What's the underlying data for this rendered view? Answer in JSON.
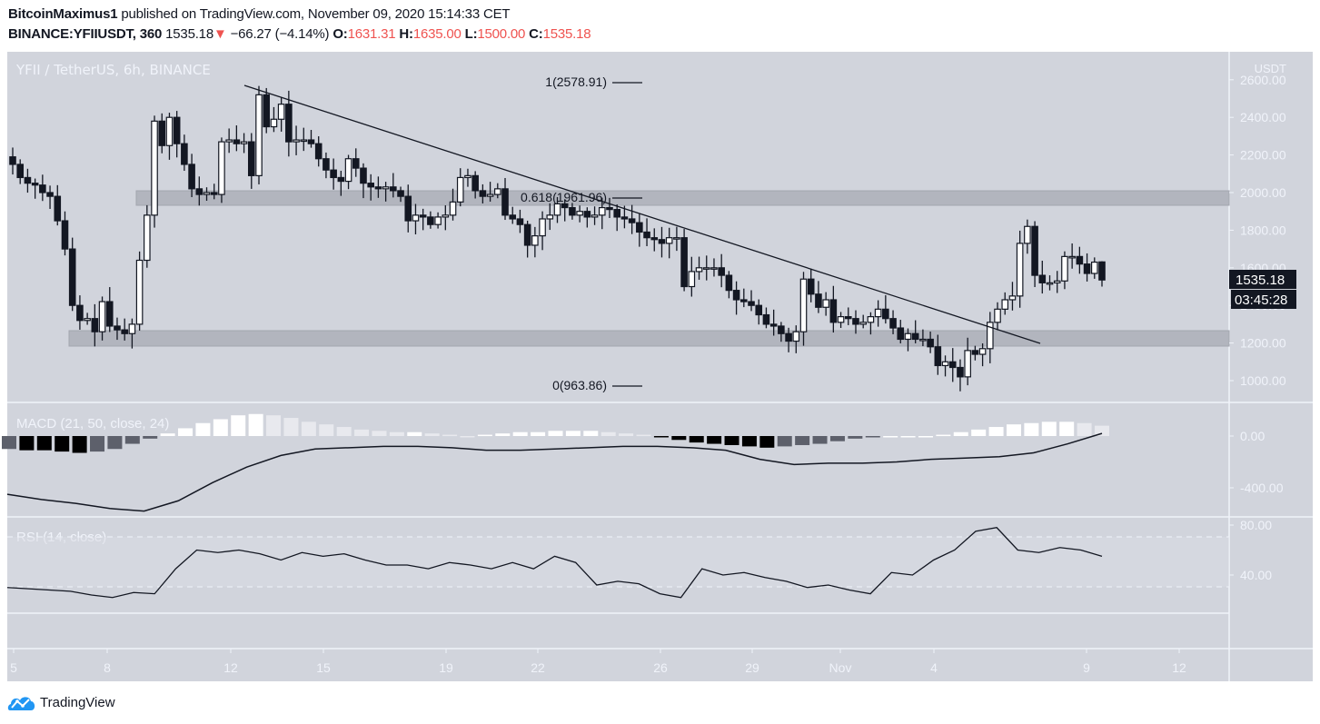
{
  "header": {
    "author": "BitcoinMaximus1",
    "published_text": "published on TradingView.com, November 09, 2020 15:14:33 CET",
    "symbol": "BINANCE:YFIIUSDT, 360",
    "last_price": "1535.18",
    "change_arrow": "▼",
    "change": "−66.27 (−4.14%)",
    "o_label": "O:",
    "o": "1631.31",
    "h_label": "H:",
    "h": "1635.00",
    "l_label": "L:",
    "l": "1500.00",
    "c_label": "C:",
    "c": "1535.18"
  },
  "colors": {
    "background": "#d1d4dc",
    "axis_bg": "#d1d4dc",
    "up_candle": "#ffffff",
    "down_candle": "#131722",
    "zone": "#b2b5be",
    "price_tag_bg": "#131722",
    "down_color": "#ef5350",
    "logo": "#2196f3"
  },
  "pane_labels": {
    "main": "YFII / TetherUS, 6h, BINANCE",
    "macd": "MACD (21, 50, close, 24)",
    "rsi": "RSI (14, close)"
  },
  "price_axis": {
    "currency": "USDT",
    "ticks": [
      "2600.00",
      "2400.00",
      "2200.00",
      "2000.00",
      "1800.00",
      "1600.00",
      "1400.00",
      "1200.00",
      "1000.00"
    ],
    "current_price": "1535.18",
    "countdown": "03:45:28"
  },
  "macd_axis": {
    "ticks": [
      "0.00",
      "-400.00"
    ]
  },
  "rsi_axis": {
    "ticks": [
      "80.00",
      "40.00"
    ]
  },
  "time_axis": {
    "ticks": [
      "5",
      "8",
      "12",
      "15",
      "19",
      "22",
      "26",
      "29",
      "Nov",
      "4",
      "9",
      "12"
    ]
  },
  "fib": {
    "level_1": "1(2578.91)",
    "level_0618": "0.618(1961.96)",
    "level_0": "0(963.86)"
  },
  "footer": {
    "brand": "TradingView"
  },
  "chart_data": {
    "type": "candlestick",
    "title": "YFII / TetherUS, 6h, BINANCE",
    "interval": "6h",
    "ylabel": "USDT",
    "ylim": [
      900,
      2700
    ],
    "x_ticks": [
      "5",
      "8",
      "12",
      "15",
      "19",
      "22",
      "26",
      "29",
      "Nov",
      "4",
      "9",
      "12"
    ],
    "close_path": [
      2150,
      2080,
      2050,
      2040,
      2000,
      1980,
      1850,
      1700,
      1400,
      1320,
      1330,
      1260,
      1420,
      1290,
      1270,
      1250,
      1300,
      1640,
      1880,
      2380,
      2250,
      2400,
      2260,
      2150,
      2020,
      1990,
      2000,
      1990,
      2270,
      2280,
      2260,
      2270,
      2090,
      2520,
      2350,
      2390,
      2470,
      2270,
      2280,
      2280,
      2260,
      2180,
      2120,
      2080,
      2060,
      2180,
      2130,
      2050,
      2030,
      2020,
      2030,
      2010,
      1980,
      1850,
      1880,
      1870,
      1830,
      1870,
      1880,
      1950,
      2080,
      2090,
      2010,
      1980,
      1990,
      2020,
      1880,
      1860,
      1830,
      1720,
      1770,
      1860,
      1880,
      1940,
      1920,
      1880,
      1900,
      1870,
      1880,
      1920,
      1910,
      1870,
      1860,
      1840,
      1790,
      1760,
      1750,
      1730,
      1760,
      1760,
      1500,
      1580,
      1600,
      1600,
      1600,
      1560,
      1480,
      1430,
      1420,
      1400,
      1350,
      1300,
      1290,
      1250,
      1210,
      1260,
      1540,
      1460,
      1390,
      1430,
      1310,
      1340,
      1330,
      1300,
      1310,
      1340,
      1380,
      1330,
      1280,
      1220,
      1250,
      1220,
      1220,
      1180,
      1080,
      1100,
      1070,
      1020,
      1160,
      1140,
      1170,
      1310,
      1380,
      1430,
      1450,
      1730,
      1820,
      1560,
      1520,
      1520,
      1530,
      1660,
      1660,
      1620,
      1570,
      1630,
      1535.18
    ],
    "annotations": [
      {
        "type": "trendline",
        "from": [
          2570,
          "Oct 12"
        ],
        "to": [
          1190,
          "Nov 6"
        ]
      },
      {
        "type": "zone",
        "range": [
          1930,
          1990
        ],
        "label": "resistance"
      },
      {
        "type": "zone",
        "range": [
          1180,
          1260
        ],
        "label": "support"
      },
      {
        "type": "fib",
        "levels": {
          "1": 2578.91,
          "0.618": 1961.96,
          "0": 963.86
        }
      }
    ],
    "last": {
      "open": 1631.31,
      "high": 1635.0,
      "low": 1500.0,
      "close": 1535.18,
      "change": -66.27,
      "change_pct": -4.14
    },
    "indicators": {
      "macd": {
        "params": [
          21,
          50,
          "close",
          24
        ],
        "ylim": [
          -550,
          350
        ],
        "ticks": [
          0,
          -400
        ],
        "line_path": [
          -450,
          -490,
          -520,
          -560,
          -580,
          -500,
          -360,
          -240,
          -150,
          -100,
          -90,
          -80,
          -80,
          -90,
          -110,
          -110,
          -100,
          -90,
          -80,
          -80,
          -90,
          -110,
          -180,
          -220,
          -210,
          -210,
          -200,
          -180,
          -170,
          -160,
          -130,
          -60,
          20
        ]
      },
      "rsi": {
        "params": [
          14,
          "close"
        ],
        "ylim": [
          0,
          90
        ],
        "bands": [
          70,
          30
        ],
        "path": [
          30,
          29,
          28,
          27,
          24,
          22,
          26,
          25,
          45,
          60,
          58,
          60,
          57,
          52,
          58,
          55,
          57,
          52,
          48,
          48,
          45,
          50,
          48,
          45,
          50,
          45,
          55,
          50,
          32,
          35,
          33,
          25,
          22,
          45,
          40,
          42,
          38,
          35,
          30,
          32,
          28,
          25,
          42,
          40,
          52,
          60,
          75,
          78,
          60,
          58,
          62,
          60,
          55
        ]
      }
    }
  }
}
